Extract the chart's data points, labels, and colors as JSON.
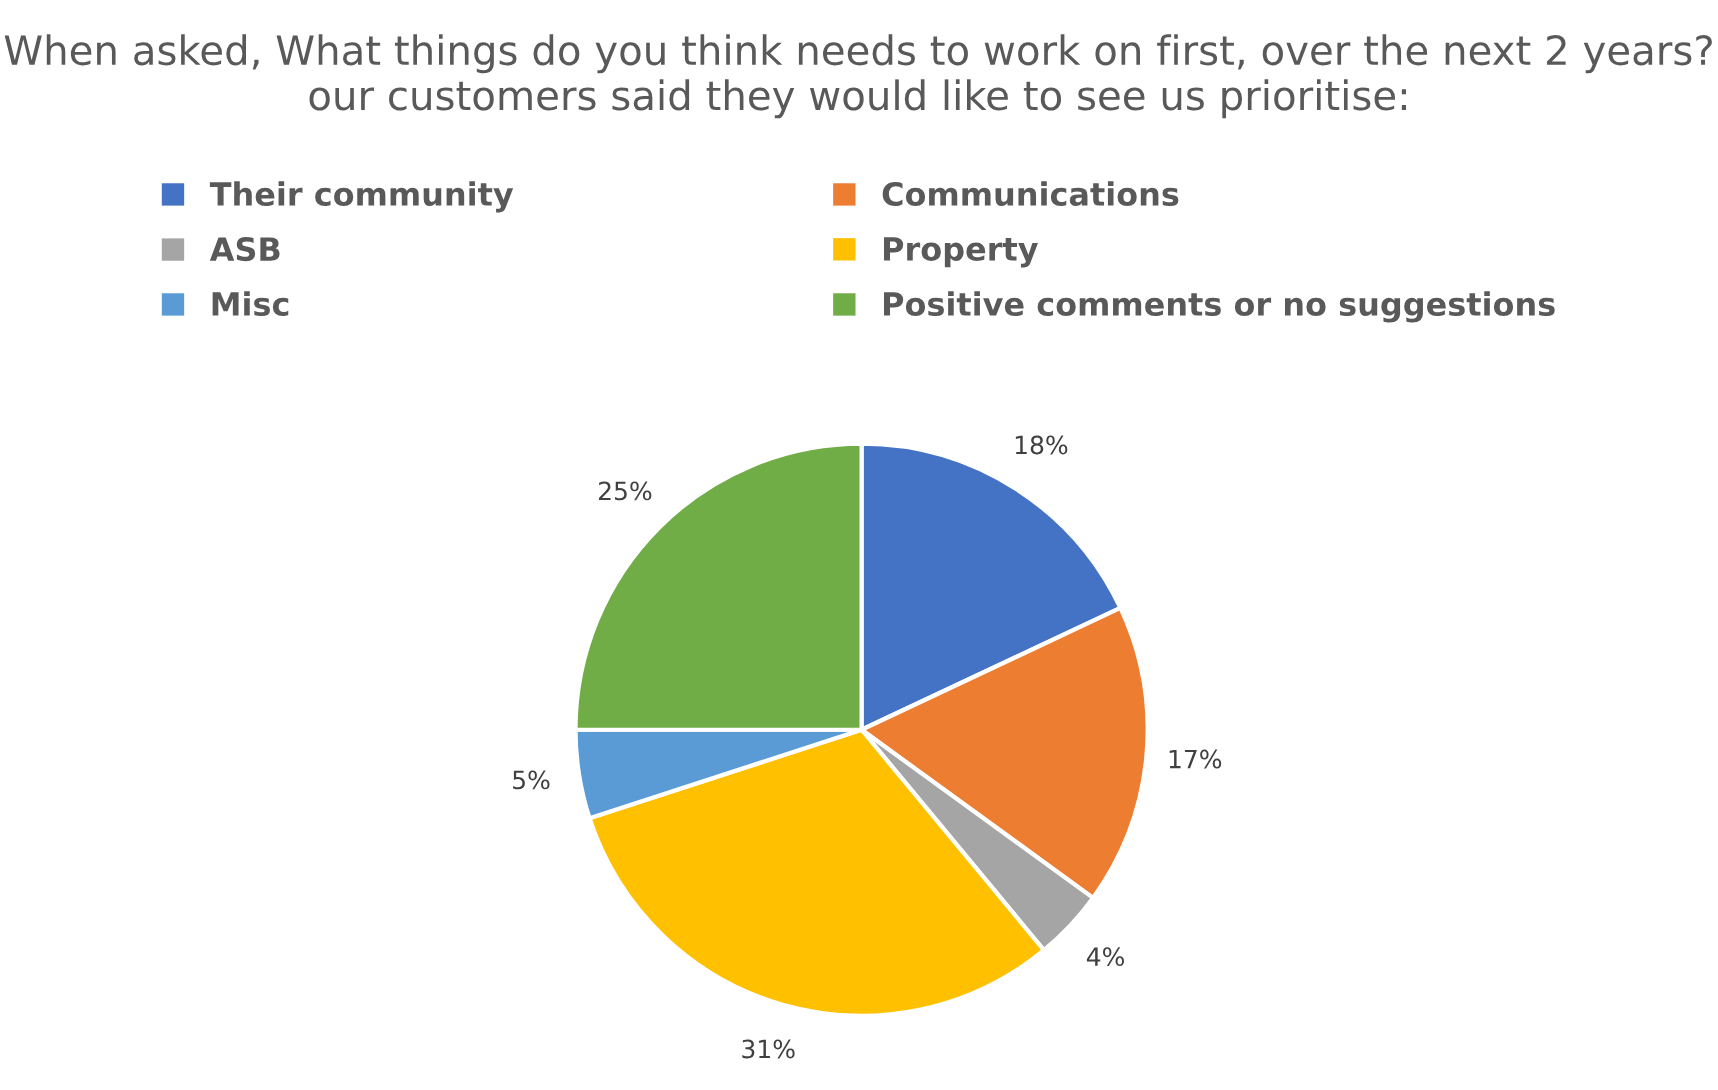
{
  "chart_data": {
    "type": "pie",
    "title": "When asked, What things do you think needs to work on first, over the next 2 years? our customers said they would like to see us prioritise:",
    "categories": [
      "Their community",
      "Communications",
      "ASB",
      "Property",
      "Misc",
      "Positive comments or no suggestions"
    ],
    "values": [
      18,
      17,
      4,
      31,
      5,
      25
    ],
    "colors": [
      "#4472c4",
      "#ed7d31",
      "#a5a5a5",
      "#ffc000",
      "#5b9bd5",
      "#70ad47"
    ],
    "value_labels": [
      "18%",
      "17%",
      "4%",
      "31%",
      "5%",
      "25%"
    ],
    "legend": "top"
  }
}
